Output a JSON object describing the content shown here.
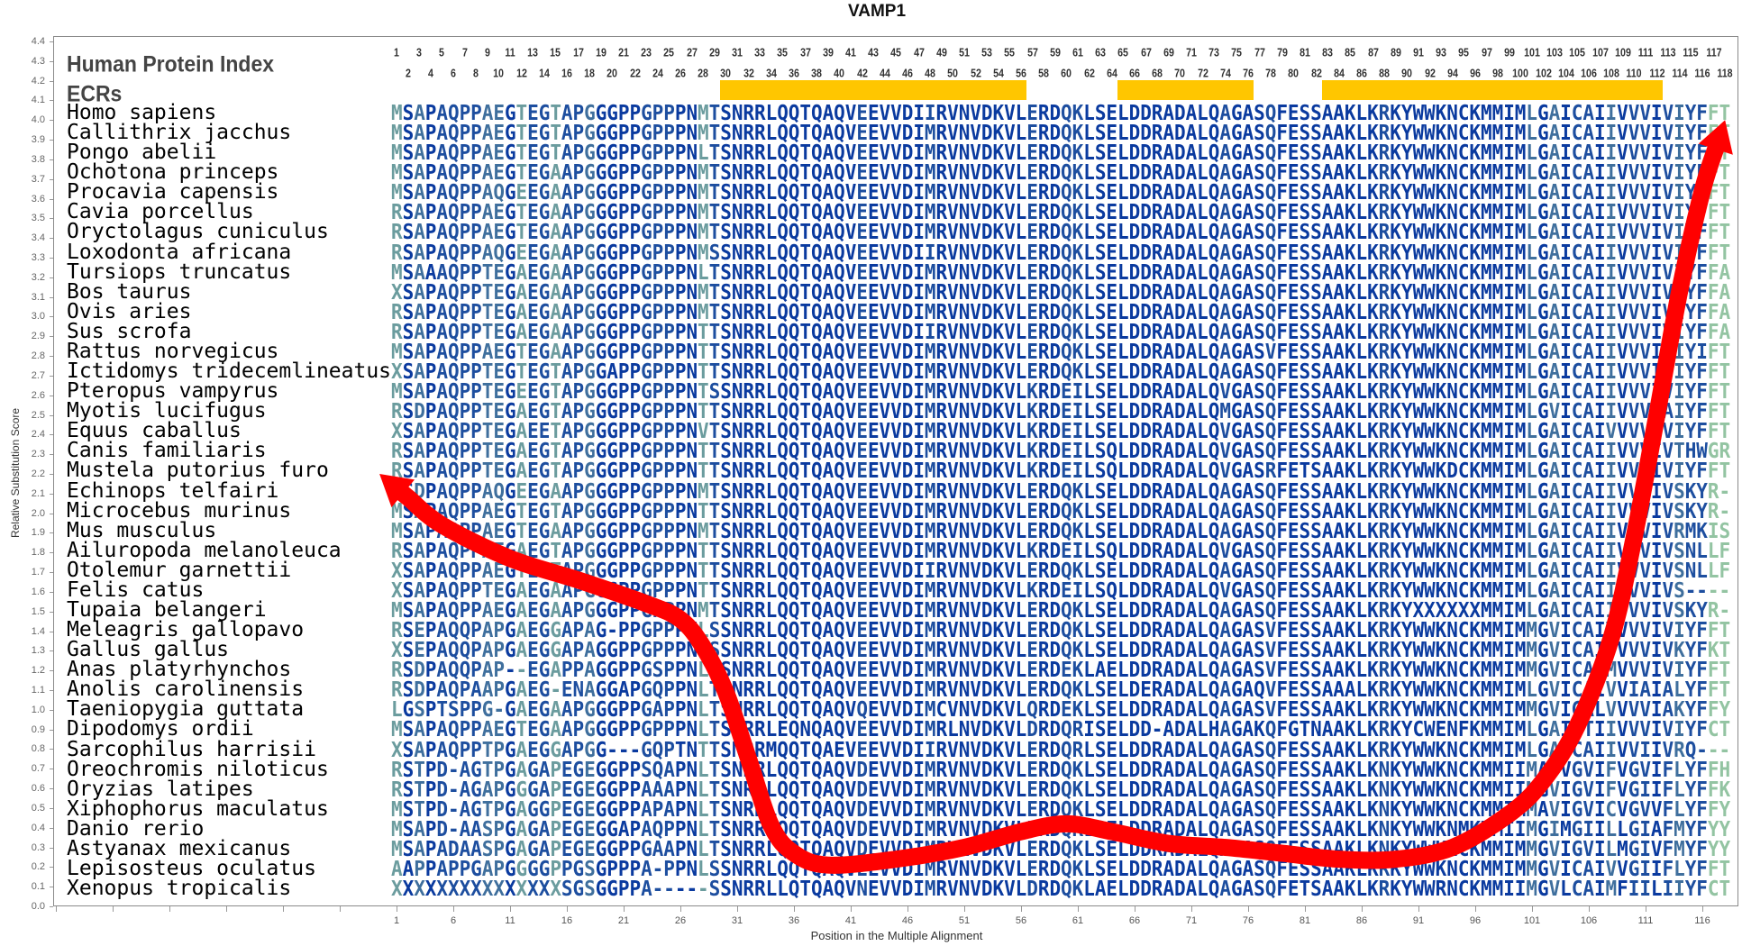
{
  "chart_data": {
    "type": "line",
    "title": "VAMP1",
    "xlabel": "Position in the Multiple Alignment",
    "ylabel": "Relative Substitution Score",
    "ylim": [
      0.0,
      4.4
    ],
    "xlim": [
      1,
      118
    ],
    "y_ticks": [
      "0.0",
      "0.1",
      "0.2",
      "0.3",
      "0.4",
      "0.5",
      "0.6",
      "0.7",
      "0.8",
      "0.9",
      "1.0",
      "1.1",
      "1.2",
      "1.3",
      "1.4",
      "1.5",
      "1.6",
      "1.7",
      "1.8",
      "1.9",
      "2.0",
      "2.1",
      "2.2",
      "2.3",
      "2.4",
      "2.5",
      "2.6",
      "2.7",
      "2.8",
      "2.9",
      "3.0",
      "3.1",
      "3.2",
      "3.3",
      "3.4",
      "3.5",
      "3.6",
      "3.7",
      "3.8",
      "3.9",
      "4.0",
      "4.1",
      "4.2",
      "4.3",
      "4.4"
    ],
    "x_ticks": [
      1,
      6,
      11,
      16,
      21,
      26,
      31,
      36,
      41,
      46,
      51,
      56,
      61,
      66,
      71,
      76,
      81,
      86,
      91,
      96,
      101,
      106,
      111,
      116
    ],
    "grid": false,
    "series": [
      {
        "color": "#ff0000",
        "arrows_at_ends": true,
        "points": [
          [
            -0.5,
            2.2
          ],
          [
            2,
            2.08
          ],
          [
            5,
            1.94
          ],
          [
            11,
            1.77
          ],
          [
            17,
            1.66
          ],
          [
            23,
            1.54
          ],
          [
            26,
            1.46
          ],
          [
            28,
            1.32
          ],
          [
            30,
            1.09
          ],
          [
            32,
            0.75
          ],
          [
            34,
            0.41
          ],
          [
            36,
            0.27
          ],
          [
            39,
            0.21
          ],
          [
            45,
            0.24
          ],
          [
            51,
            0.3
          ],
          [
            56,
            0.38
          ],
          [
            60,
            0.42
          ],
          [
            64,
            0.38
          ],
          [
            69,
            0.32
          ],
          [
            74,
            0.3
          ],
          [
            79,
            0.27
          ],
          [
            84,
            0.24
          ],
          [
            89,
            0.24
          ],
          [
            94,
            0.3
          ],
          [
            99,
            0.47
          ],
          [
            102,
            0.64
          ],
          [
            105,
            0.92
          ],
          [
            108,
            1.37
          ],
          [
            110,
            1.88
          ],
          [
            112,
            2.5
          ],
          [
            114,
            3.13
          ],
          [
            116,
            3.64
          ],
          [
            118,
            4.0
          ]
        ]
      }
    ]
  },
  "header": {
    "protein_index_label": "Human Protein Index",
    "ecr_label": "ECRs"
  },
  "human_protein_index": [
    1,
    2,
    3,
    4,
    5,
    6,
    7,
    8,
    9,
    10,
    11,
    12,
    13,
    14,
    15,
    16,
    17,
    18,
    19,
    20,
    21,
    22,
    23,
    24,
    25,
    26,
    27,
    28,
    29,
    30,
    31,
    32,
    33,
    34,
    35,
    36,
    37,
    38,
    39,
    40,
    41,
    42,
    43,
    44,
    45,
    46,
    47,
    48,
    49,
    50,
    51,
    52,
    53,
    54,
    55,
    56,
    57,
    58,
    59,
    60,
    61,
    62,
    63,
    64,
    65,
    66,
    67,
    68,
    69,
    70,
    71,
    72,
    73,
    74,
    75,
    76,
    77,
    78,
    79,
    80,
    81,
    82,
    83,
    84,
    85,
    86,
    87,
    88,
    89,
    90,
    91,
    92,
    93,
    94,
    95,
    96,
    97,
    98,
    99,
    100,
    101,
    102,
    103,
    104,
    105,
    106,
    107,
    108,
    109,
    110,
    111,
    112,
    113,
    114,
    115,
    116,
    117,
    118
  ],
  "ecrs": [
    {
      "start": 30,
      "end": 56
    },
    {
      "start": 65,
      "end": 76
    },
    {
      "start": 83,
      "end": 112
    }
  ],
  "colors": {
    "ecr": "#ffc600",
    "curve": "#ff0000",
    "conserved": "#0a3a9f",
    "mostly_conserved": "#1d4e9f",
    "variable": "#3f6f9d",
    "highly_variable": "#6b9c9e",
    "terminal": "#93c4a2"
  },
  "alignment": [
    {
      "species": "Homo sapiens",
      "sequence": "MSAPAQPPAEGTEGTAPGGGPPGPPPNMTSNRRLQQTQAQVEEVVDIIRVNVDKVLERDQKLSELDDRADALQAGASQFESSAAKLKRKYWWKNCKMMIMLGAICAIIVVVIVIYFFT"
    },
    {
      "species": "Callithrix jacchus",
      "sequence": "MSAPAQPPAEGTEGTAPGGGPPGPPPNMTSNRRLQQTQAQVEEVVDIMRVNVDKVLERDQKLSELDDRADALQAGASQFESSAAKLKRKYWWKNCKMMIMLGAICAIIVVVIVIYFFT"
    },
    {
      "species": "Pongo abelii",
      "sequence": "MSAPAQPPAEGTEGTAPGGGPPGPPPNLTSNRRLQQTQAQVEEVVDIMRVNVDKVLERDQKLSELDDRADALQAGASQFESSAAKLKRKYWWKNCKMMIMLGAICAIIVVVIVIYFFT"
    },
    {
      "species": "Ochotona princeps",
      "sequence": "MSAPAQPPAEGTEGAAPGGGPPGPPPNMTSNRRLQQTQAQVEEVVDIMRVNVDKVLERDQKLSELDDRADALQAGASQFESSAAKLKRKYWWKNCKMMIMLGAICAIIVVVIVIYFFT"
    },
    {
      "species": "Procavia capensis",
      "sequence": "MSAPAQPPAQGEEGAAPGGGPPGPPPNMTSNRRLQQTQAQVEEVVDIMRVNVDKVLERDQKLSELDDRADALQAGASQFESSAAKLKRKYWWKNCKMMIMLGAICAIIVVVIVIYFFT"
    },
    {
      "species": "Cavia porcellus",
      "sequence": "RSAPAQPPAEGTEGAAPGGGPPGPPPNMTSNRRLQQTQAQVEEVVDIMRVNVDKVLERDQKLSELDDRADALQAGASQFESSAAKLKRKYWWKNCKMMIMLGAICAIIVVVIVIYFFT"
    },
    {
      "species": "Oryctolagus cuniculus",
      "sequence": "RSAPAQPPAEGTEGAAPGGGPPGPPPNMTSNRRLQQTQAQVEEVVDIMRVNVDKVLERDQKLSELDDRADALQAGASQFESSAAKLKRKYWWKNCKMMIMLGAICAIIVVVIVIYFFT"
    },
    {
      "species": "Loxodonta africana",
      "sequence": "RSAPAQPPAQGEEGAAPGGGPPGPPPNMSSNRRLQQTQAQVEEVVDIIRVNVDKVLERDQKLSELDDRADALQAGASQFESSAAKLKRKYWWKNCKMMIMLGAICAIIVVVIVIYFFT"
    },
    {
      "species": "Tursiops truncatus",
      "sequence": "MSAAAQPPTEGAEGAAPGGGPPGPPPNLTSNRRLQQTQAQVEEVVDIMRVNVDKVLERDQKLSELDDRADALQAGASQFESSAAKLKRKYWWKNCKMMIMLGAICAIIVVVIVIYFFA"
    },
    {
      "species": "Bos taurus",
      "sequence": "XSAPAQPPTEGAEGAAPGGGPPGPPPNMTSNRRLQQTQAQVEEVVDIMRVNVDKVLERDQKLSELDDRADALQAGASQFESSAAKLKRKYWWKNCKMMIMLGAICAIIVVVIVIYFFA"
    },
    {
      "species": "Ovis aries",
      "sequence": "RSAPAQPPTEGAEGAAPGGGPPGPPPNMTSNRRLQQTQAQVEEVVDIMRVNVDKVLERDQKLSELDDRADALQAGASQFESSAAKLKRKYWWKNCKMMIMLGAICAIIVVVIVIYFFA"
    },
    {
      "species": "Sus scrofa",
      "sequence": "RSAPAQPPTEGAEGAAPGGGPPGPPPNTTSNRRLQQTQAQVEEVVDIIRVNVDKVLERDQKLSELDDRADALQAGASQFESSAAKLKRKYWWKNCKMMIMLGAICAIIVVVIVIYFFA"
    },
    {
      "species": "Rattus norvegicus",
      "sequence": "MSAPAQPPAEGTEGAAPGGGPPGPPPNTTSNRRLQQTQAQVEEVVDIMRVNVDKVLERDQKLSELDDRADALQAGASVFESSAAKLKRKYWWKNCKMMIMLGAICAIIVVVIVIYIFT"
    },
    {
      "species": "Ictidomys tridecemlineatus",
      "sequence": "XSAPAQPPTEGTEGTAPGGAPPGPPPNTTSNRRLQQTQAQVEEVVDIMRVNVDKVLERDQKLSELDDRADALQAGASQFESSAAKLKRKYWWKNCKMMIMLGAICAIIVVVIVIYFFT"
    },
    {
      "species": "Pteropus vampyrus",
      "sequence": "MSAPAQPPTEGEEGTAPGGGPPGPPPNTSSNRRLQQTQAQVEEVVDIMRVNVDKVLKRDEILSELDDRADALQVGASQFESSAAKLKRKYWWKNCKMMIMLGAICAIIVVVIVIYFFT"
    },
    {
      "species": "Myotis lucifugus",
      "sequence": "RSDPAQPPTEGAEGTAPGGGPPGPPPNTTSNRRLQQTQAQVEEVVDIMRVNVDKVLKRDEILSELDDRADALQMGASQFESSAAKLKRKYWWKNCKMMIMLGVICAIIVVVIAIYFFT"
    },
    {
      "species": "Equus caballus",
      "sequence": "XSAPAQPPTEGAEETAPGGGPPGPPPNVTSNRRLQQTQAQVEEVVDIMRVNVDKVLKRDEILSELDDRADALQVGASQFESSAAKLKRKYWWKNCKMMIMLGAICAIVVVVIVIYFFT"
    },
    {
      "species": "Canis familiaris",
      "sequence": "RSAPAQPPTEGAEGTAPGGGPPGPPPNTTSNRRLQQTQAQVEEVVDIMRVNVDKVLKRDEILSQLDDRADALQVGASQFESSAAKLKRKYWWKNCKMMIMLGAICAIIVVVIVTHWGR"
    },
    {
      "species": "Mustela putorius furo",
      "sequence": "RSAPAQPPTEGAEGTAPGGGPPGPPPNTTSNRRLQQTQAQVEEVVDIMRVNVDKVLKRDEILSQLDDRADALQVGASRFETSAAKLKRKYWWKDCKMMIMLGAICAIIVVVIVIYFFT"
    },
    {
      "species": "Echinops telfairi",
      "sequence": "MSDPAQPPAQGEEGAAPGGGPPGPPPNMTSNRRLQQTQAQVEEVVDIMRVNVDKVLERDQKLSELDDRADALQAGASQFESSAAKLKRKYWWKNCKMMIMLGAICAIIVVVIVSKYR-"
    },
    {
      "species": "Microcebus murinus",
      "sequence": "MSAPAQPPAEGTEGTAPGGGPPGPPPNTTSNRRLQQTQAQVEEVVDIMRVNVDKVLERDQKLSELDDRADALQAGASQFESSAAKLKRKYWWKNCKMMIMLGAICAIIVVVIVSKYR-"
    },
    {
      "species": "Mus musculus",
      "sequence": "MSAPAQPPAEGTEGAAPGGGPPGPPPNMTSNRRLQQTQAQVEEVVDIMRVNVDKVLERDQKLSELDDRADALQAGASQFESSAAKLKRKYWWKNCKMMIMLGAICAIIVVVIVRMKIS"
    },
    {
      "species": "Ailuropoda melanoleuca",
      "sequence": "RSAPAQPPAEGAEGTAPGGGPPGPPPNTTSNRRLQQTQAQVEEVVDIMRVNVDKVLKRDEILSQLDDRADALQVGASQFESSAAKLKRKYWWKNCKMMIMLGAICAIIVVVIVSNLLF"
    },
    {
      "species": "Otolemur garnettii",
      "sequence": "XSAPAQPPAEGTEGTAPGGGPPGPPPNTTSNRRLQQTQAQVEEVVDIIRVNVDKVLERDQKLSELDDRADALQAGASQFESSAAKLKRKYWWKNCKMMIMLGAICAIIVVVIVSNLLF"
    },
    {
      "species": "Felis catus",
      "sequence": "XSAPAQPPTEGAEGAAPGGGPPGPPPNTTSNRRLQQTQAQVEEVVDIMRVNVDKVLKRDEILSQLDDRADALQVGASQFESSAAKLKRKYWWKNCKMMIMLGAICAIIVVVIVS----"
    },
    {
      "species": "Tupaia belangeri",
      "sequence": "MSAPAQPPAEGAEGAAPGGGPPGPPPNMTSNRRLQQTQAQVEEVVDIMRVNVDKVLERDQKLSELDDRADALQAGASQFESSAAKLKRKYXXXXXXMMIMLGAICAIIVVVIVSKYR-"
    },
    {
      "species": "Meleagris gallopavo",
      "sequence": "RSEPAQQPAPGAEGGAPAG-PPGPPPNLSSNRRLQQTQAQVEEVVDIMRVNVDKVLERDQKLSELDDRADALQAGASVFESSAAKLKRKYWWKNCKMMIMMGVICAIVVVVIVIYFFT"
    },
    {
      "species": "Gallus gallus",
      "sequence": "XSEPAQQPAPGAEGGAPAGGPPGPPPNLSSNRRLQQTQAQVEEVVDIMRVNVDKVLERDQKLSELDDRADALQAGASVFESSAAKLKRKYWWKNCKMMIMMGVICAIVVVVIVKYFKT"
    },
    {
      "species": "Anas platyrhynchos",
      "sequence": "RSDPAQQPAP--EGAPPAGGPPGSPPNLSSNRRLQQTQAQVEEVVDIMRVNVDKVLERDEKLAELDDRADALQAGASVFESSAAKLKRKYWWKNCKMMIMMGVICAIMVVVIVIYFFT"
    },
    {
      "species": "Anolis carolinensis",
      "sequence": "RSDPAQPAAPGAEG-ENAGGAPGQPPNLTSNRRLQQTQAQVEEVVDIMRVNVDKVLERDQKLSELDERADALQAGAQVFESSAAALKRKYWWKNCKMMIMLGVICAIVVIAIALYFFT"
    },
    {
      "species": "Taeniopygia guttata",
      "sequence": "LGSPTSPPG-GAEGAAPGGGPPGAPPNLTSNRRLQQTQAQVQEVVDIMCVNVDKVLQRDEKLSELDDRADALQAGASVFESSAAKLKRKYWWKNCKMMIMMGVIGALVVVVIAKYFFY"
    },
    {
      "species": "Dipodomys ordii",
      "sequence": "MSAPAQPPAEGTEGAAPGGGPPGPPPNLTSNRRLEQNQAQVEEVVDIMRLNVDKVLDRDQRISELDD-ADALHAGAKQFGTNAAKLKRKYCWENFKMMIMLGAICTIIVVVIVIYFCT"
    },
    {
      "species": "Sarcophilus harrisii",
      "sequence": "XSAPAQPPTPGAEGGAPGG---GQPTNTTSNRRMQQTQAEVEEVVDIIRVNVDKVLERDQRLSELDDRADALQAGASQFESSAAKLKRKYWWKNCKMMIMLGAICAIIVVIIVRQ---"
    },
    {
      "species": "Oreochromis niloticus",
      "sequence": "RSTPD-AGTPGAGAPEGEGGPPSQAPNLTSNRRLQQTQAQVDEVVDIMRVNVDKVLERDQKLSELDDRADALQAGASQFESSAAKLKNKYWWKNCKMMIIMAVVGVIFVGVIFLYFFH"
    },
    {
      "species": "Oryzias latipes",
      "sequence": "RSTPD-AGAPGGGAPEGEGGPPAAAPNLTSNRRLQQTQAQVDEVVDIMRVNVDKVLERDQKLSELDDRADALQAGASQFESSAAKLKNKYWWKNCKMMIIMGVIGVIFVGIIFLYFFK"
    },
    {
      "species": "Xiphophorus maculatus",
      "sequence": "MSTPD-AGTPGAGGPEGEGGPPAPAPNLTSNRRLQQTQAQVDEVVDIMRVNVDKVLERDQKLSELDDRADALQAGASQFESSAAKLKNKYWWKNCKMMIMMAVIGVICVGVVFLYFFY"
    },
    {
      "species": "Danio rerio",
      "sequence": "MSAPD-AASPGAGAPEGEGGAPAQPPNLTSNRRLQQTQAQVDEVVDIMRVNVDKVLERDQKLSELDDRADALQAGASQFESSAAKLKNKYWWKNMKMMIIMGIMGIILLGIAFMYFYY"
    },
    {
      "species": "Astyanax mexicanus",
      "sequence": "MSAPADAASPGAGAPEGEGGPPGAAPNLTSNRRLQQTQAQVDEVVDIMRVNVDKVLERDQKLSELDDRADALQAGASQFESSAAKLKNKYWWKNCKMMIMMGVIGVILMGIVFMYFYY"
    },
    {
      "species": "Lepisosteus oculatus",
      "sequence": "AAPPAPPGAPGGGGPPGSGPPPA-PPNLSSNRRLQQTQAQVEEVVDIMRVNVDKVLERDQKLSELDDRADALQAGASQFESSAAKLKRKYWWKNCKMMIMMGVICAIVVGIIFLYFFT"
    },
    {
      "species": "Xenopus tropicalis",
      "sequence": "XXXXXXXXXXXXXXXSGSGGPPA-----SSNRRLLQTQAQVNEVVDIMRVNVDKVLDRDQKLAELDDRADALQAGASQFETSAAKLKRKYWWRNCKMMIIMGVLCAIMFIILIIYFCT"
    }
  ]
}
